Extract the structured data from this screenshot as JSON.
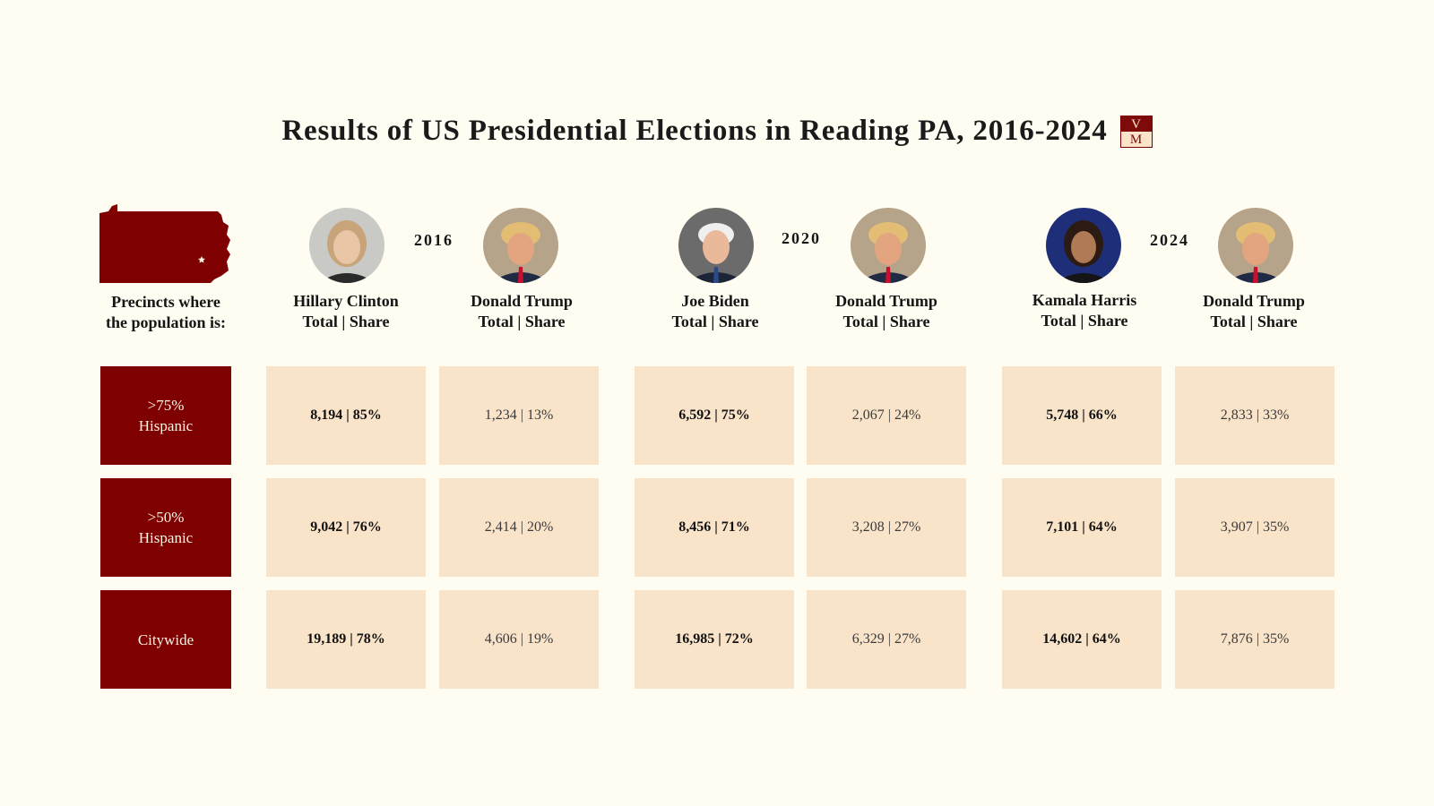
{
  "title": "Results of US Presidential Elections in Reading PA, 2016-2024",
  "logo": {
    "top": "V",
    "bottom": "M"
  },
  "map_icon": "pennsylvania-map-icon",
  "row_header": {
    "line1": "Precincts where",
    "line2": "the population is:"
  },
  "column_subheader": "Total | Share",
  "colors": {
    "accent": "#7e0000",
    "cell": "#f9e4c9",
    "background": "#fffdf1"
  },
  "elections": [
    {
      "year": "2016",
      "candidates": [
        {
          "name": "Hillary Clinton",
          "photo": "clinton-portrait"
        },
        {
          "name": "Donald Trump",
          "photo": "trump-portrait"
        }
      ]
    },
    {
      "year": "2020",
      "candidates": [
        {
          "name": "Joe Biden",
          "photo": "biden-portrait"
        },
        {
          "name": "Donald Trump",
          "photo": "trump-portrait"
        }
      ]
    },
    {
      "year": "2024",
      "candidates": [
        {
          "name": "Kamala Harris",
          "photo": "harris-portrait"
        },
        {
          "name": "Donald Trump",
          "photo": "trump-portrait"
        }
      ]
    }
  ],
  "rows": [
    {
      "label_line1": ">75%",
      "label_line2": "Hispanic",
      "cells": [
        "8,194 | 85%",
        "1,234 | 13%",
        "6,592 | 75%",
        "2,067 | 24%",
        "5,748 | 66%",
        "2,833 | 33%"
      ]
    },
    {
      "label_line1": ">50%",
      "label_line2": "Hispanic",
      "cells": [
        "9,042 | 76%",
        "2,414 | 20%",
        "8,456 | 71%",
        "3,208 | 27%",
        "7,101 | 64%",
        "3,907 | 35%"
      ]
    },
    {
      "label_line1": "Citywide",
      "label_line2": "",
      "cells": [
        "19,189 | 78%",
        "4,606 | 19%",
        "16,985 | 72%",
        "6,329 | 27%",
        "14,602 | 64%",
        "7,876 | 35%"
      ]
    }
  ],
  "chart_data": {
    "type": "table",
    "title": "Results of US Presidential Elections in Reading PA, 2016-2024",
    "row_labels": [
      ">75% Hispanic",
      ">50% Hispanic",
      "Citywide"
    ],
    "columns": [
      {
        "year": 2016,
        "candidate": "Hillary Clinton",
        "totals": [
          8194,
          9042,
          19189
        ],
        "shares": [
          85,
          76,
          78
        ]
      },
      {
        "year": 2016,
        "candidate": "Donald Trump",
        "totals": [
          1234,
          2414,
          4606
        ],
        "shares": [
          13,
          20,
          19
        ]
      },
      {
        "year": 2020,
        "candidate": "Joe Biden",
        "totals": [
          6592,
          8456,
          16985
        ],
        "shares": [
          75,
          71,
          72
        ]
      },
      {
        "year": 2020,
        "candidate": "Donald Trump",
        "totals": [
          2067,
          3208,
          6329
        ],
        "shares": [
          24,
          27,
          27
        ]
      },
      {
        "year": 2024,
        "candidate": "Kamala Harris",
        "totals": [
          5748,
          7101,
          14602
        ],
        "shares": [
          66,
          64,
          64
        ]
      },
      {
        "year": 2024,
        "candidate": "Donald Trump",
        "totals": [
          2833,
          3907,
          7876
        ],
        "shares": [
          33,
          35,
          35
        ]
      }
    ]
  }
}
